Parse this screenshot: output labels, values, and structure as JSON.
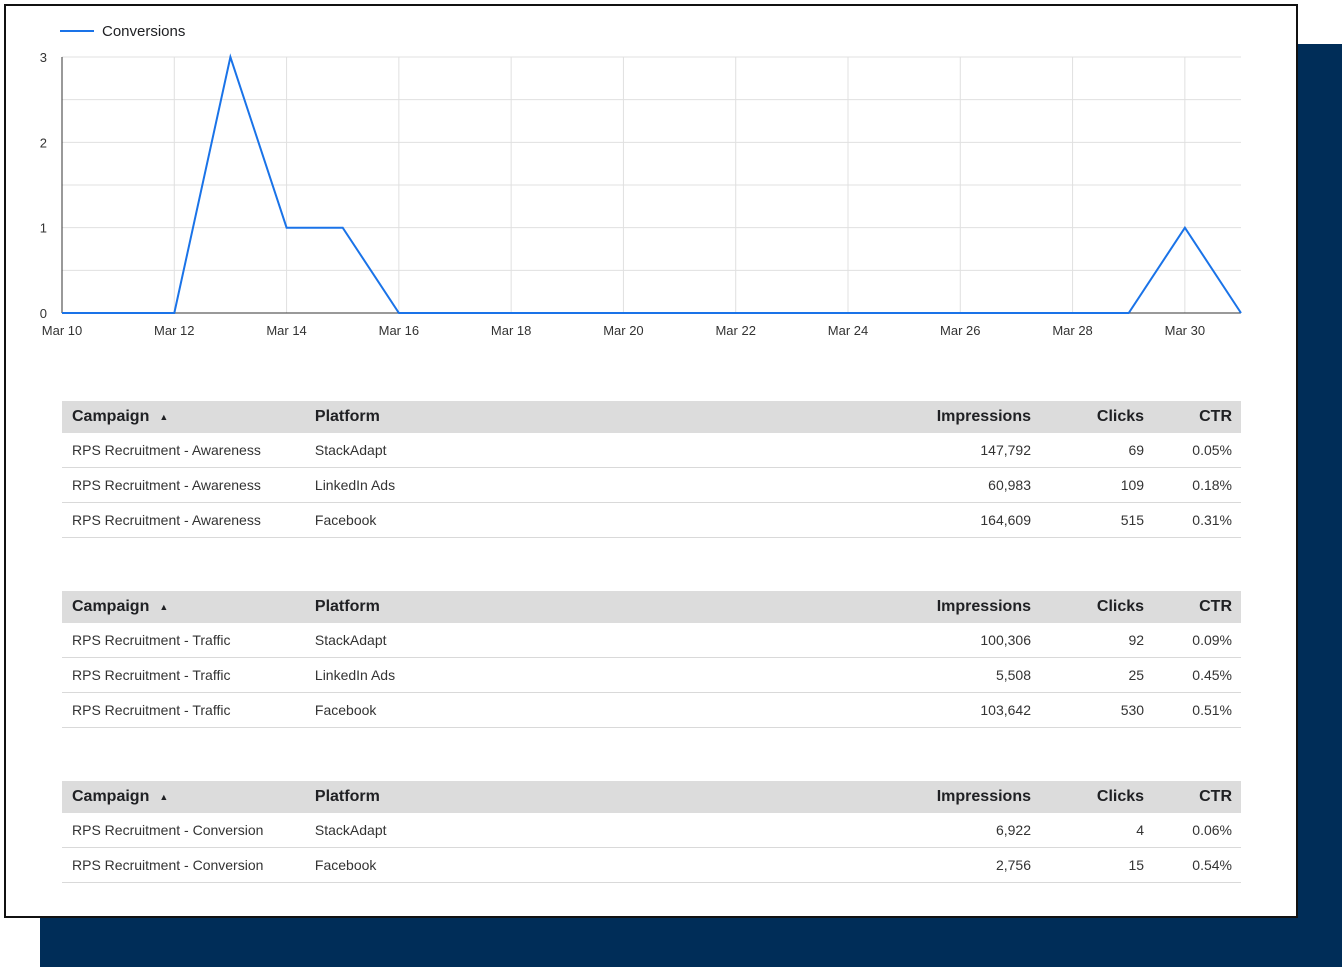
{
  "colors": {
    "line": "#1a73e8",
    "navy": "#002d58",
    "header_bg": "#dcdcdc"
  },
  "chart_data": {
    "type": "line",
    "series": [
      {
        "name": "Conversions",
        "x": [
          "Mar 10",
          "Mar 11",
          "Mar 12",
          "Mar 13",
          "Mar 14",
          "Mar 15",
          "Mar 16",
          "Mar 17",
          "Mar 18",
          "Mar 19",
          "Mar 20",
          "Mar 21",
          "Mar 22",
          "Mar 23",
          "Mar 24",
          "Mar 25",
          "Mar 26",
          "Mar 27",
          "Mar 28",
          "Mar 29",
          "Mar 30",
          "Mar 31"
        ],
        "values": [
          0,
          0,
          0,
          3,
          1,
          1,
          0,
          0,
          0,
          0,
          0,
          0,
          0,
          0,
          0,
          0,
          0,
          0,
          0,
          0,
          1,
          0
        ]
      }
    ],
    "x_tick_labels": [
      "Mar 10",
      "Mar 12",
      "Mar 14",
      "Mar 16",
      "Mar 18",
      "Mar 20",
      "Mar 22",
      "Mar 24",
      "Mar 26",
      "Mar 28",
      "Mar 30"
    ],
    "y_tick_labels": [
      "0",
      "1",
      "2",
      "3"
    ],
    "ylim": [
      0,
      3
    ],
    "grid": true,
    "legend_position": "top-left"
  },
  "legend": {
    "label": "Conversions"
  },
  "tables": [
    {
      "headers": {
        "campaign": "Campaign",
        "platform": "Platform",
        "impressions": "Impressions",
        "clicks": "Clicks",
        "ctr": "CTR"
      },
      "rows": [
        {
          "campaign": "RPS Recruitment - Awareness",
          "platform": "StackAdapt",
          "impressions": "147,792",
          "clicks": "69",
          "ctr": "0.05%"
        },
        {
          "campaign": "RPS Recruitment - Awareness",
          "platform": "LinkedIn Ads",
          "impressions": "60,983",
          "clicks": "109",
          "ctr": "0.18%"
        },
        {
          "campaign": "RPS Recruitment - Awareness",
          "platform": "Facebook",
          "impressions": "164,609",
          "clicks": "515",
          "ctr": "0.31%"
        }
      ]
    },
    {
      "headers": {
        "campaign": "Campaign",
        "platform": "Platform",
        "impressions": "Impressions",
        "clicks": "Clicks",
        "ctr": "CTR"
      },
      "rows": [
        {
          "campaign": "RPS Recruitment - Traffic",
          "platform": "StackAdapt",
          "impressions": "100,306",
          "clicks": "92",
          "ctr": "0.09%"
        },
        {
          "campaign": "RPS Recruitment - Traffic",
          "platform": "LinkedIn Ads",
          "impressions": "5,508",
          "clicks": "25",
          "ctr": "0.45%"
        },
        {
          "campaign": "RPS Recruitment - Traffic",
          "platform": "Facebook",
          "impressions": "103,642",
          "clicks": "530",
          "ctr": "0.51%"
        }
      ]
    },
    {
      "headers": {
        "campaign": "Campaign",
        "platform": "Platform",
        "impressions": "Impressions",
        "clicks": "Clicks",
        "ctr": "CTR"
      },
      "rows": [
        {
          "campaign": "RPS Recruitment - Conversion",
          "platform": "StackAdapt",
          "impressions": "6,922",
          "clicks": "4",
          "ctr": "0.06%"
        },
        {
          "campaign": "RPS Recruitment - Conversion",
          "platform": "Facebook",
          "impressions": "2,756",
          "clicks": "15",
          "ctr": "0.54%"
        }
      ]
    }
  ]
}
